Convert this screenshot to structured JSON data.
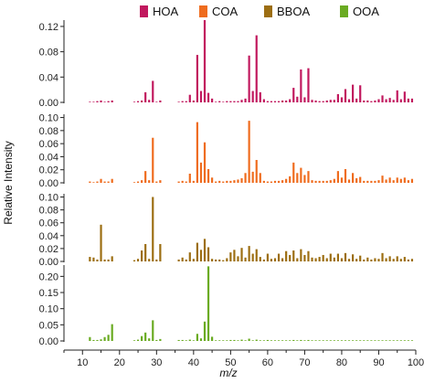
{
  "chart_data": {
    "type": "bar",
    "ylabel": "Relative Intensity",
    "xlabel": "m/z",
    "xlim": [
      5,
      100
    ],
    "xticks": [
      10,
      20,
      30,
      40,
      50,
      60,
      70,
      80,
      90,
      100
    ],
    "legend": {
      "placement": "top"
    },
    "panels": [
      {
        "name": "HOA",
        "color": "#c1185e",
        "ylim": [
          0,
          0.13
        ],
        "yticks": [
          0.0,
          0.04,
          0.08,
          0.12
        ],
        "tick_labels": [
          "0.00",
          "0.04",
          "0.08",
          "0.12"
        ],
        "x": [
          12,
          13,
          14,
          15,
          16,
          17,
          18,
          24,
          25,
          26,
          27,
          28,
          29,
          30,
          31,
          36,
          37,
          38,
          39,
          40,
          41,
          42,
          43,
          44,
          45,
          46,
          47,
          48,
          49,
          50,
          51,
          52,
          53,
          54,
          55,
          56,
          57,
          58,
          59,
          60,
          61,
          62,
          63,
          64,
          65,
          66,
          67,
          68,
          69,
          70,
          71,
          72,
          73,
          74,
          75,
          76,
          77,
          78,
          79,
          80,
          81,
          82,
          83,
          84,
          85,
          86,
          87,
          88,
          89,
          90,
          91,
          92,
          93,
          94,
          95,
          96,
          97,
          98,
          99
        ],
        "values": [
          0.001,
          0.001,
          0.002,
          0.003,
          0.001,
          0.002,
          0.003,
          0.001,
          0.002,
          0.003,
          0.016,
          0.004,
          0.034,
          0.001,
          0.003,
          0.001,
          0.002,
          0.002,
          0.012,
          0.003,
          0.075,
          0.018,
          0.13,
          0.015,
          0.006,
          0.001,
          0.002,
          0.001,
          0.002,
          0.002,
          0.002,
          0.002,
          0.004,
          0.006,
          0.074,
          0.018,
          0.106,
          0.016,
          0.005,
          0.002,
          0.002,
          0.002,
          0.002,
          0.003,
          0.003,
          0.005,
          0.023,
          0.009,
          0.052,
          0.008,
          0.054,
          0.004,
          0.003,
          0.002,
          0.002,
          0.003,
          0.004,
          0.004,
          0.013,
          0.008,
          0.021,
          0.005,
          0.028,
          0.006,
          0.027,
          0.003,
          0.003,
          0.002,
          0.003,
          0.005,
          0.011,
          0.005,
          0.007,
          0.004,
          0.019,
          0.005,
          0.017,
          0.006,
          0.006
        ]
      },
      {
        "name": "COA",
        "color": "#ef6c1e",
        "ylim": [
          0,
          0.105
        ],
        "yticks": [
          0.0,
          0.02,
          0.04,
          0.06,
          0.08,
          0.1
        ],
        "tick_labels": [
          "0.00",
          "0.02",
          "0.04",
          "0.06",
          "0.08",
          "0.10"
        ],
        "x": [
          12,
          13,
          14,
          15,
          16,
          17,
          18,
          24,
          25,
          26,
          27,
          28,
          29,
          30,
          31,
          36,
          37,
          38,
          39,
          40,
          41,
          42,
          43,
          44,
          45,
          46,
          47,
          48,
          49,
          50,
          51,
          52,
          53,
          54,
          55,
          56,
          57,
          58,
          59,
          60,
          61,
          62,
          63,
          64,
          65,
          66,
          67,
          68,
          69,
          70,
          71,
          72,
          73,
          74,
          75,
          76,
          77,
          78,
          79,
          80,
          81,
          82,
          83,
          84,
          85,
          86,
          87,
          88,
          89,
          90,
          91,
          92,
          93,
          94,
          95,
          96,
          97,
          98,
          99
        ],
        "values": [
          0.002,
          0.001,
          0.002,
          0.006,
          0.002,
          0.002,
          0.006,
          0.001,
          0.002,
          0.004,
          0.018,
          0.004,
          0.069,
          0.002,
          0.004,
          0.002,
          0.003,
          0.002,
          0.014,
          0.003,
          0.093,
          0.031,
          0.062,
          0.021,
          0.008,
          0.002,
          0.003,
          0.002,
          0.003,
          0.003,
          0.004,
          0.005,
          0.007,
          0.015,
          0.095,
          0.017,
          0.035,
          0.015,
          0.003,
          0.002,
          0.002,
          0.003,
          0.003,
          0.004,
          0.006,
          0.01,
          0.031,
          0.015,
          0.023,
          0.012,
          0.018,
          0.004,
          0.003,
          0.003,
          0.003,
          0.003,
          0.004,
          0.006,
          0.018,
          0.008,
          0.021,
          0.005,
          0.015,
          0.007,
          0.009,
          0.003,
          0.003,
          0.003,
          0.003,
          0.004,
          0.011,
          0.005,
          0.008,
          0.004,
          0.008,
          0.006,
          0.008,
          0.004,
          0.006
        ]
      },
      {
        "name": "BBOA",
        "color": "#9c6e12",
        "ylim": [
          0,
          0.105
        ],
        "yticks": [
          0.0,
          0.02,
          0.04,
          0.06,
          0.08,
          0.1
        ],
        "tick_labels": [
          "0.00",
          "0.02",
          "0.04",
          "0.06",
          "0.08",
          "0.10"
        ],
        "x": [
          12,
          13,
          14,
          15,
          16,
          17,
          18,
          24,
          25,
          26,
          27,
          28,
          29,
          30,
          31,
          36,
          37,
          38,
          39,
          40,
          41,
          42,
          43,
          44,
          45,
          46,
          47,
          48,
          49,
          50,
          51,
          52,
          53,
          54,
          55,
          56,
          57,
          58,
          59,
          60,
          61,
          62,
          63,
          64,
          65,
          66,
          67,
          68,
          69,
          70,
          71,
          72,
          73,
          74,
          75,
          76,
          77,
          78,
          79,
          80,
          81,
          82,
          83,
          84,
          85,
          86,
          87,
          88,
          89,
          90,
          91,
          92,
          93,
          94,
          95,
          96,
          97,
          98,
          99
        ],
        "values": [
          0.007,
          0.006,
          0.003,
          0.057,
          0.003,
          0.003,
          0.008,
          0.002,
          0.004,
          0.017,
          0.027,
          0.004,
          0.1,
          0.003,
          0.027,
          0.003,
          0.006,
          0.003,
          0.014,
          0.004,
          0.029,
          0.018,
          0.035,
          0.022,
          0.004,
          0.003,
          0.003,
          0.002,
          0.005,
          0.014,
          0.018,
          0.008,
          0.021,
          0.006,
          0.024,
          0.012,
          0.019,
          0.007,
          0.003,
          0.012,
          0.004,
          0.005,
          0.012,
          0.005,
          0.016,
          0.01,
          0.017,
          0.005,
          0.019,
          0.01,
          0.016,
          0.006,
          0.005,
          0.007,
          0.01,
          0.005,
          0.012,
          0.006,
          0.012,
          0.005,
          0.013,
          0.004,
          0.011,
          0.004,
          0.009,
          0.003,
          0.006,
          0.003,
          0.005,
          0.004,
          0.013,
          0.005,
          0.008,
          0.004,
          0.008,
          0.004,
          0.007,
          0.003,
          0.004
        ]
      },
      {
        "name": "OOA",
        "color": "#6aab22",
        "ylim": [
          0,
          0.235
        ],
        "yticks": [
          0.0,
          0.05,
          0.1,
          0.15,
          0.2
        ],
        "tick_labels": [
          "0.00",
          "0.05",
          "0.10",
          "0.15",
          "0.20"
        ],
        "x": [
          12,
          13,
          14,
          15,
          16,
          17,
          18,
          24,
          25,
          26,
          27,
          28,
          29,
          30,
          31,
          36,
          37,
          38,
          39,
          40,
          41,
          42,
          43,
          44,
          45,
          46,
          47,
          48,
          49,
          50,
          51,
          52,
          53,
          54,
          55,
          56,
          57,
          58,
          59,
          60,
          61,
          62,
          63,
          64,
          65,
          66,
          67,
          68,
          69,
          70,
          71,
          72,
          73,
          74,
          75,
          76,
          77,
          78,
          79,
          80,
          81,
          82,
          83,
          84,
          85,
          86,
          87,
          88,
          89,
          90,
          91,
          92,
          93,
          94,
          95,
          96,
          97,
          98,
          99
        ],
        "values": [
          0.012,
          0.003,
          0.003,
          0.005,
          0.012,
          0.019,
          0.052,
          0.002,
          0.004,
          0.015,
          0.026,
          0.008,
          0.064,
          0.003,
          0.006,
          0.003,
          0.003,
          0.002,
          0.004,
          0.002,
          0.022,
          0.008,
          0.06,
          0.231,
          0.013,
          0.002,
          0.002,
          0.002,
          0.002,
          0.003,
          0.003,
          0.002,
          0.004,
          0.002,
          0.007,
          0.002,
          0.004,
          0.002,
          0.002,
          0.003,
          0.002,
          0.002,
          0.002,
          0.002,
          0.002,
          0.002,
          0.003,
          0.002,
          0.003,
          0.002,
          0.003,
          0.002,
          0.002,
          0.002,
          0.002,
          0.002,
          0.002,
          0.002,
          0.002,
          0.002,
          0.002,
          0.002,
          0.002,
          0.002,
          0.002,
          0.002,
          0.002,
          0.002,
          0.002,
          0.002,
          0.002,
          0.002,
          0.002,
          0.002,
          0.002,
          0.002,
          0.002,
          0.002,
          0.002
        ]
      }
    ]
  }
}
